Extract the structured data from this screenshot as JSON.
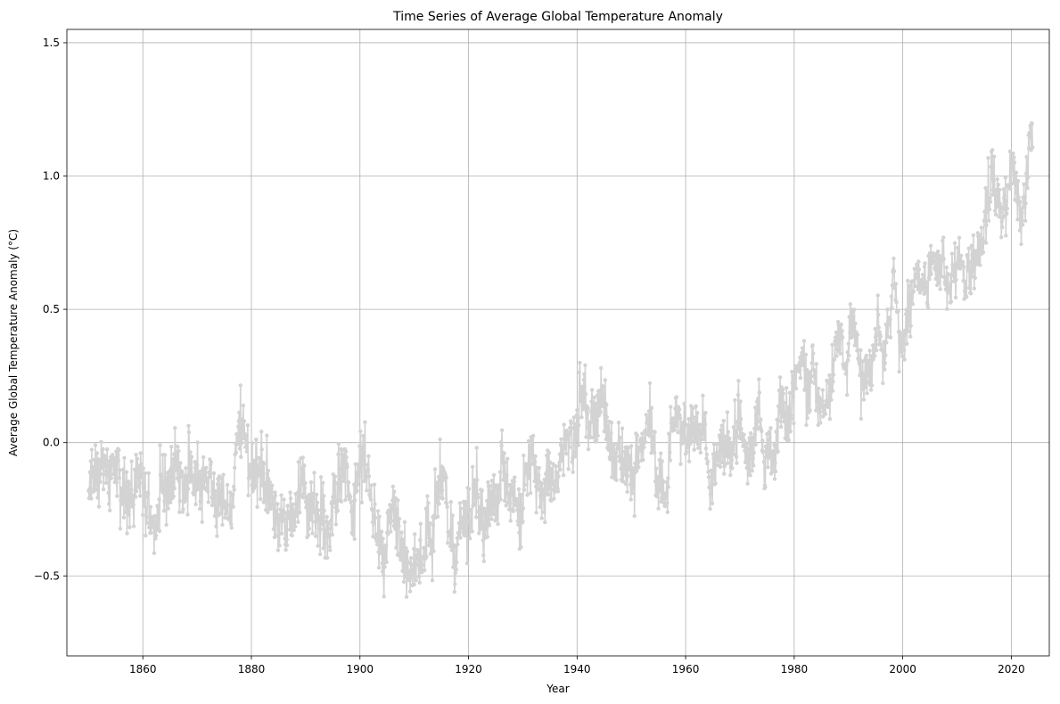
{
  "chart_data": {
    "type": "line",
    "title": "Time Series of Average Global Temperature Anomaly",
    "xlabel": "Year",
    "ylabel": "Average Global Temperature Anomaly (°C)",
    "xlim": [
      1846,
      2027
    ],
    "ylim": [
      -0.8,
      1.55
    ],
    "x_ticks": [
      1860,
      1880,
      1900,
      1920,
      1940,
      1960,
      1980,
      2000,
      2020
    ],
    "y_ticks": [
      -0.5,
      0.0,
      0.5,
      1.0,
      1.5
    ],
    "x_tick_labels": [
      "1860",
      "1880",
      "1900",
      "1920",
      "1940",
      "1960",
      "1980",
      "2000",
      "2020"
    ],
    "y_tick_labels": [
      "−0.5",
      "0.0",
      "0.5",
      "1.0",
      "1.5"
    ],
    "grid": true,
    "line_color": "#d3d3d3",
    "frequency": "monthly",
    "x_start": 1850,
    "x_end": 2023.917,
    "series": [
      {
        "name": "",
        "color": "#d3d3d3",
        "marker": "circle",
        "annual_values": [
          [
            1850,
            -0.18
          ],
          [
            1851,
            -0.07
          ],
          [
            1852,
            -0.09
          ],
          [
            1853,
            -0.1
          ],
          [
            1854,
            -0.08
          ],
          [
            1855,
            -0.1
          ],
          [
            1856,
            -0.28
          ],
          [
            1857,
            -0.22
          ],
          [
            1858,
            -0.18
          ],
          [
            1859,
            -0.08
          ],
          [
            1860,
            -0.22
          ],
          [
            1861,
            -0.27
          ],
          [
            1862,
            -0.32
          ],
          [
            1863,
            -0.13
          ],
          [
            1864,
            -0.18
          ],
          [
            1865,
            -0.14
          ],
          [
            1866,
            -0.07
          ],
          [
            1867,
            -0.19
          ],
          [
            1868,
            -0.11
          ],
          [
            1869,
            -0.12
          ],
          [
            1870,
            -0.16
          ],
          [
            1871,
            -0.12
          ],
          [
            1872,
            -0.16
          ],
          [
            1873,
            -0.18
          ],
          [
            1874,
            -0.22
          ],
          [
            1875,
            -0.24
          ],
          [
            1876,
            -0.23
          ],
          [
            1877,
            0.04
          ],
          [
            1878,
            0.09
          ],
          [
            1879,
            -0.1
          ],
          [
            1880,
            -0.14
          ],
          [
            1881,
            -0.09
          ],
          [
            1882,
            -0.13
          ],
          [
            1883,
            -0.2
          ],
          [
            1884,
            -0.28
          ],
          [
            1885,
            -0.31
          ],
          [
            1886,
            -0.3
          ],
          [
            1887,
            -0.3
          ],
          [
            1888,
            -0.2
          ],
          [
            1889,
            -0.12
          ],
          [
            1890,
            -0.3
          ],
          [
            1891,
            -0.23
          ],
          [
            1892,
            -0.3
          ],
          [
            1893,
            -0.33
          ],
          [
            1894,
            -0.28
          ],
          [
            1895,
            -0.22
          ],
          [
            1896,
            -0.11
          ],
          [
            1897,
            -0.07
          ],
          [
            1898,
            -0.25
          ],
          [
            1899,
            -0.12
          ],
          [
            1900,
            -0.07
          ],
          [
            1901,
            -0.12
          ],
          [
            1902,
            -0.24
          ],
          [
            1903,
            -0.34
          ],
          [
            1904,
            -0.43
          ],
          [
            1905,
            -0.28
          ],
          [
            1906,
            -0.22
          ],
          [
            1907,
            -0.37
          ],
          [
            1908,
            -0.44
          ],
          [
            1909,
            -0.47
          ],
          [
            1910,
            -0.43
          ],
          [
            1911,
            -0.45
          ],
          [
            1912,
            -0.34
          ],
          [
            1913,
            -0.34
          ],
          [
            1914,
            -0.15
          ],
          [
            1915,
            -0.1
          ],
          [
            1916,
            -0.34
          ],
          [
            1917,
            -0.45
          ],
          [
            1918,
            -0.34
          ],
          [
            1919,
            -0.28
          ],
          [
            1920,
            -0.27
          ],
          [
            1921,
            -0.18
          ],
          [
            1922,
            -0.28
          ],
          [
            1923,
            -0.26
          ],
          [
            1924,
            -0.26
          ],
          [
            1925,
            -0.2
          ],
          [
            1926,
            -0.08
          ],
          [
            1927,
            -0.18
          ],
          [
            1928,
            -0.17
          ],
          [
            1929,
            -0.35
          ],
          [
            1930,
            -0.12
          ],
          [
            1931,
            -0.07
          ],
          [
            1932,
            -0.13
          ],
          [
            1933,
            -0.28
          ],
          [
            1934,
            -0.12
          ],
          [
            1935,
            -0.17
          ],
          [
            1936,
            -0.12
          ],
          [
            1937,
            -0.02
          ],
          [
            1938,
            -0.01
          ],
          [
            1939,
            0.0
          ],
          [
            1940,
            0.12
          ],
          [
            1941,
            0.18
          ],
          [
            1942,
            0.05
          ],
          [
            1943,
            0.07
          ],
          [
            1944,
            0.18
          ],
          [
            1945,
            0.06
          ],
          [
            1946,
            -0.03
          ],
          [
            1947,
            -0.04
          ],
          [
            1948,
            -0.09
          ],
          [
            1949,
            -0.09
          ],
          [
            1950,
            -0.17
          ],
          [
            1951,
            -0.01
          ],
          [
            1952,
            0.02
          ],
          [
            1953,
            0.1
          ],
          [
            1954,
            -0.11
          ],
          [
            1955,
            -0.15
          ],
          [
            1956,
            -0.19
          ],
          [
            1957,
            0.05
          ],
          [
            1958,
            0.1
          ],
          [
            1959,
            0.06
          ],
          [
            1960,
            0.02
          ],
          [
            1961,
            0.08
          ],
          [
            1962,
            0.04
          ],
          [
            1963,
            0.07
          ],
          [
            1964,
            -0.18
          ],
          [
            1965,
            -0.08
          ],
          [
            1966,
            -0.02
          ],
          [
            1967,
            -0.01
          ],
          [
            1968,
            -0.06
          ],
          [
            1969,
            0.09
          ],
          [
            1970,
            0.03
          ],
          [
            1971,
            -0.08
          ],
          [
            1972,
            0.01
          ],
          [
            1973,
            0.16
          ],
          [
            1974,
            -0.07
          ],
          [
            1975,
            -0.01
          ],
          [
            1976,
            -0.1
          ],
          [
            1977,
            0.18
          ],
          [
            1978,
            0.07
          ],
          [
            1979,
            0.16
          ],
          [
            1980,
            0.26
          ],
          [
            1981,
            0.32
          ],
          [
            1982,
            0.14
          ],
          [
            1983,
            0.31
          ],
          [
            1984,
            0.16
          ],
          [
            1985,
            0.12
          ],
          [
            1986,
            0.18
          ],
          [
            1987,
            0.33
          ],
          [
            1988,
            0.4
          ],
          [
            1989,
            0.27
          ],
          [
            1990,
            0.45
          ],
          [
            1991,
            0.41
          ],
          [
            1992,
            0.22
          ],
          [
            1993,
            0.24
          ],
          [
            1994,
            0.31
          ],
          [
            1995,
            0.45
          ],
          [
            1996,
            0.33
          ],
          [
            1997,
            0.46
          ],
          [
            1998,
            0.61
          ],
          [
            1999,
            0.38
          ],
          [
            2000,
            0.39
          ],
          [
            2001,
            0.54
          ],
          [
            2002,
            0.63
          ],
          [
            2003,
            0.62
          ],
          [
            2004,
            0.54
          ],
          [
            2005,
            0.68
          ],
          [
            2006,
            0.64
          ],
          [
            2007,
            0.66
          ],
          [
            2008,
            0.54
          ],
          [
            2009,
            0.66
          ],
          [
            2010,
            0.72
          ],
          [
            2011,
            0.61
          ],
          [
            2012,
            0.64
          ],
          [
            2013,
            0.68
          ],
          [
            2014,
            0.75
          ],
          [
            2015,
            0.9
          ],
          [
            2016,
            1.01
          ],
          [
            2017,
            0.92
          ],
          [
            2018,
            0.85
          ],
          [
            2019,
            0.98
          ],
          [
            2020,
            1.01
          ],
          [
            2021,
            0.84
          ],
          [
            2022,
            0.89
          ],
          [
            2023,
            1.17
          ]
        ]
      }
    ]
  }
}
